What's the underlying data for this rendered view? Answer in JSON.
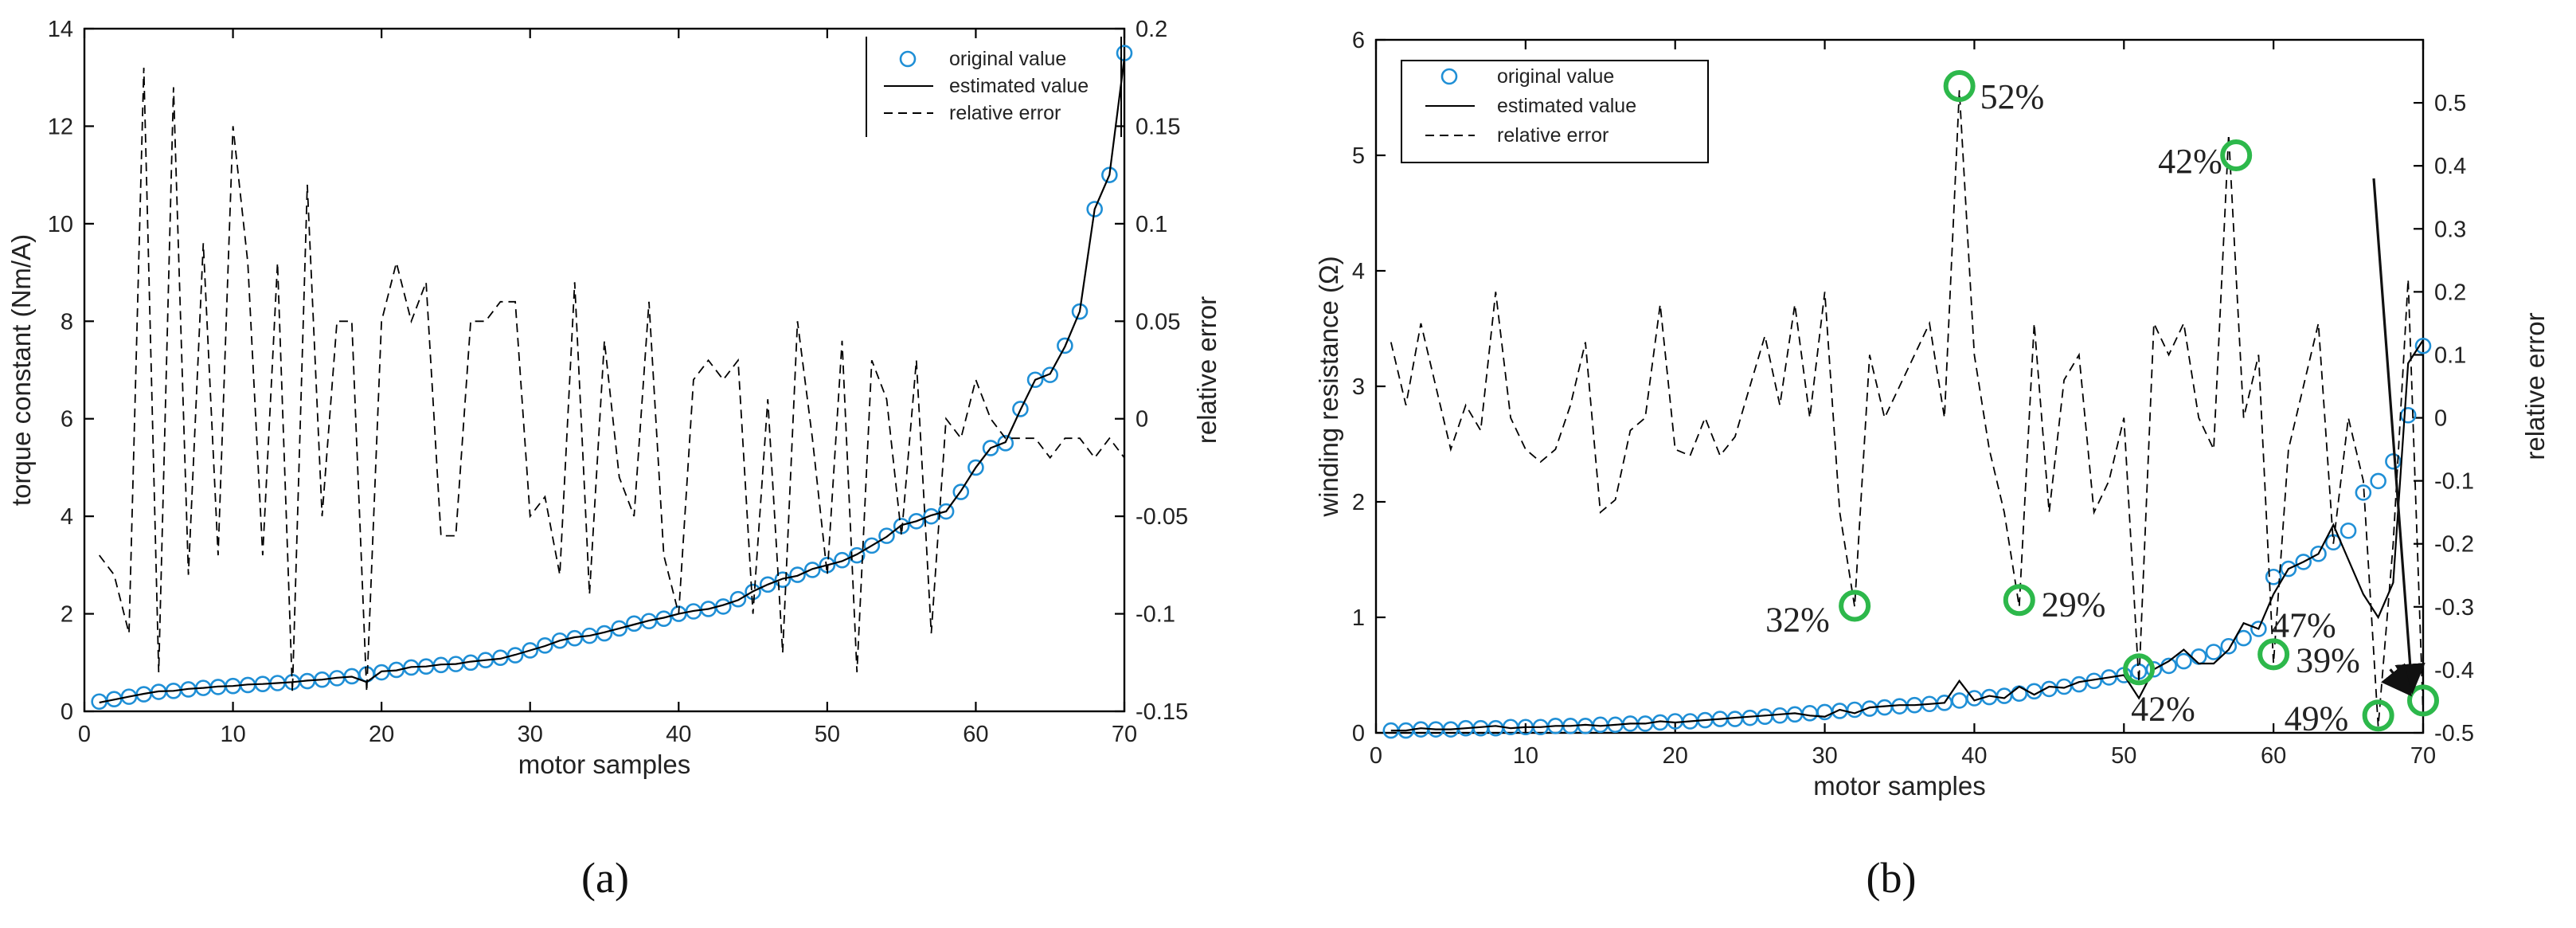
{
  "chart_data": [
    {
      "type": "line",
      "caption": "(a)",
      "xlabel": "motor samples",
      "ylabel": "torque constant (Nm/A)",
      "y2label": "relative error",
      "xlim": [
        0,
        70
      ],
      "ylim": [
        0,
        14
      ],
      "y2lim": [
        -0.15,
        0.2
      ],
      "xticks": [
        "0",
        "10",
        "20",
        "30",
        "40",
        "50",
        "60",
        "70"
      ],
      "yticks": [
        "0",
        "2",
        "4",
        "6",
        "8",
        "10",
        "12",
        "14"
      ],
      "y2ticks": [
        "-0.15",
        "-0.1",
        "-0.05",
        "0",
        "0.05",
        "0.1",
        "0.15",
        "0.2"
      ],
      "legend": {
        "position": "top-right",
        "entries": [
          "original value",
          "estimated value",
          "relative error"
        ]
      },
      "x": [
        1,
        2,
        3,
        4,
        5,
        6,
        7,
        8,
        9,
        10,
        11,
        12,
        13,
        14,
        15,
        16,
        17,
        18,
        19,
        20,
        21,
        22,
        23,
        24,
        25,
        26,
        27,
        28,
        29,
        30,
        31,
        32,
        33,
        34,
        35,
        36,
        37,
        38,
        39,
        40,
        41,
        42,
        43,
        44,
        45,
        46,
        47,
        48,
        49,
        50,
        51,
        52,
        53,
        54,
        55,
        56,
        57,
        58,
        59,
        60,
        61,
        62,
        63,
        64,
        65,
        66,
        67,
        68,
        69,
        70
      ],
      "series": [
        {
          "name": "original value",
          "style": "circles",
          "axis": "left",
          "values": [
            0.2,
            0.25,
            0.3,
            0.35,
            0.4,
            0.42,
            0.45,
            0.48,
            0.5,
            0.52,
            0.54,
            0.56,
            0.58,
            0.6,
            0.62,
            0.65,
            0.68,
            0.72,
            0.76,
            0.8,
            0.85,
            0.9,
            0.92,
            0.95,
            0.97,
            1.0,
            1.05,
            1.1,
            1.15,
            1.25,
            1.35,
            1.45,
            1.5,
            1.55,
            1.6,
            1.7,
            1.8,
            1.85,
            1.9,
            2.0,
            2.05,
            2.1,
            2.15,
            2.3,
            2.45,
            2.6,
            2.7,
            2.8,
            2.9,
            3.0,
            3.1,
            3.2,
            3.4,
            3.6,
            3.8,
            3.9,
            4.0,
            4.1,
            4.5,
            5.0,
            5.4,
            5.5,
            6.2,
            6.8,
            6.9,
            7.5,
            8.2,
            10.3,
            11.0,
            13.5
          ]
        },
        {
          "name": "estimated value",
          "style": "solid",
          "axis": "left",
          "values": [
            0.18,
            0.24,
            0.3,
            0.36,
            0.41,
            0.42,
            0.46,
            0.48,
            0.51,
            0.52,
            0.55,
            0.56,
            0.58,
            0.6,
            0.63,
            0.65,
            0.69,
            0.71,
            0.6,
            0.82,
            0.84,
            0.91,
            0.92,
            0.96,
            0.97,
            1.02,
            1.05,
            1.08,
            1.16,
            1.25,
            1.34,
            1.45,
            1.52,
            1.55,
            1.62,
            1.7,
            1.78,
            1.86,
            1.92,
            2.0,
            2.06,
            2.1,
            2.18,
            2.28,
            2.46,
            2.6,
            2.72,
            2.78,
            2.92,
            3.0,
            3.08,
            3.22,
            3.4,
            3.58,
            3.82,
            3.9,
            4.02,
            4.1,
            4.52,
            5.0,
            5.4,
            5.52,
            6.18,
            6.8,
            6.92,
            7.48,
            8.2,
            10.3,
            11.0,
            13.4
          ]
        },
        {
          "name": "relative error",
          "style": "dashed",
          "axis": "right",
          "values": [
            -0.07,
            -0.08,
            -0.11,
            0.18,
            -0.13,
            0.17,
            -0.08,
            0.09,
            -0.07,
            0.15,
            0.08,
            -0.07,
            0.08,
            -0.14,
            0.12,
            -0.05,
            0.05,
            0.05,
            -0.14,
            0.05,
            0.08,
            0.05,
            0.07,
            -0.06,
            -0.06,
            0.05,
            0.05,
            0.06,
            0.06,
            -0.05,
            -0.04,
            -0.08,
            0.07,
            -0.09,
            0.04,
            -0.03,
            -0.05,
            0.06,
            -0.07,
            -0.1,
            0.02,
            0.03,
            0.02,
            0.03,
            -0.1,
            0.01,
            -0.12,
            0.05,
            -0.01,
            -0.08,
            0.04,
            -0.13,
            0.03,
            0.01,
            -0.06,
            0.03,
            -0.11,
            0.0,
            -0.01,
            0.02,
            0.0,
            -0.01,
            -0.01,
            -0.01,
            -0.02,
            -0.01,
            -0.01,
            -0.02,
            -0.01,
            -0.02
          ]
        }
      ]
    },
    {
      "type": "line",
      "caption": "(b)",
      "xlabel": "motor samples",
      "ylabel": "winding resistance (Ω)",
      "y2label": "relative error",
      "xlim": [
        0,
        70
      ],
      "ylim": [
        0,
        6
      ],
      "y2lim": [
        -0.5,
        0.6
      ],
      "xticks": [
        "0",
        "10",
        "20",
        "30",
        "40",
        "50",
        "60",
        "70"
      ],
      "yticks": [
        "0",
        "1",
        "2",
        "3",
        "4",
        "5",
        "6"
      ],
      "y2ticks": [
        "-0.5",
        "-0.4",
        "-0.3",
        "-0.2",
        "-0.1",
        "0",
        "0.1",
        "0.2",
        "0.3",
        "0.4",
        "0.5"
      ],
      "legend": {
        "position": "top-left",
        "entries": [
          "original value",
          "estimated value",
          "relative error"
        ]
      },
      "x": [
        1,
        2,
        3,
        4,
        5,
        6,
        7,
        8,
        9,
        10,
        11,
        12,
        13,
        14,
        15,
        16,
        17,
        18,
        19,
        20,
        21,
        22,
        23,
        24,
        25,
        26,
        27,
        28,
        29,
        30,
        31,
        32,
        33,
        34,
        35,
        36,
        37,
        38,
        39,
        40,
        41,
        42,
        43,
        44,
        45,
        46,
        47,
        48,
        49,
        50,
        51,
        52,
        53,
        54,
        55,
        56,
        57,
        58,
        59,
        60,
        61,
        62,
        63,
        64,
        65,
        66,
        67,
        68,
        69,
        70
      ],
      "series": [
        {
          "name": "original value",
          "style": "circles",
          "axis": "left",
          "values": [
            0.02,
            0.02,
            0.03,
            0.03,
            0.03,
            0.04,
            0.04,
            0.04,
            0.05,
            0.05,
            0.05,
            0.06,
            0.06,
            0.06,
            0.07,
            0.07,
            0.08,
            0.08,
            0.09,
            0.1,
            0.1,
            0.11,
            0.12,
            0.12,
            0.13,
            0.14,
            0.15,
            0.16,
            0.17,
            0.18,
            0.19,
            0.2,
            0.21,
            0.22,
            0.23,
            0.24,
            0.25,
            0.26,
            0.28,
            0.3,
            0.31,
            0.32,
            0.34,
            0.36,
            0.38,
            0.4,
            0.42,
            0.45,
            0.48,
            0.5,
            0.53,
            0.55,
            0.58,
            0.62,
            0.66,
            0.7,
            0.75,
            0.82,
            0.9,
            1.35,
            1.42,
            1.48,
            1.55,
            1.65,
            1.75,
            2.08,
            2.18,
            2.35,
            2.75,
            3.35
          ]
        },
        {
          "name": "estimated value",
          "style": "solid",
          "axis": "left",
          "values": [
            0.02,
            0.02,
            0.04,
            0.03,
            0.03,
            0.04,
            0.05,
            0.06,
            0.04,
            0.05,
            0.05,
            0.06,
            0.06,
            0.07,
            0.06,
            0.07,
            0.08,
            0.08,
            0.1,
            0.09,
            0.1,
            0.11,
            0.12,
            0.13,
            0.14,
            0.15,
            0.16,
            0.17,
            0.15,
            0.14,
            0.2,
            0.17,
            0.22,
            0.23,
            0.24,
            0.24,
            0.25,
            0.26,
            0.45,
            0.28,
            0.32,
            0.3,
            0.4,
            0.33,
            0.4,
            0.39,
            0.44,
            0.46,
            0.48,
            0.5,
            0.3,
            0.55,
            0.62,
            0.72,
            0.6,
            0.6,
            0.72,
            0.95,
            0.9,
            1.2,
            1.42,
            1.48,
            1.55,
            1.8,
            1.5,
            1.2,
            1.0,
            1.3,
            3.2,
            3.4
          ]
        },
        {
          "name": "relative error",
          "style": "dashed",
          "axis": "right",
          "values": [
            0.12,
            0.02,
            0.15,
            0.05,
            -0.05,
            0.02,
            -0.02,
            0.2,
            0.0,
            -0.05,
            -0.07,
            -0.05,
            0.02,
            0.12,
            -0.15,
            -0.13,
            -0.02,
            0.0,
            0.18,
            -0.05,
            -0.06,
            0.0,
            -0.06,
            -0.03,
            0.05,
            0.13,
            0.02,
            0.18,
            0.0,
            0.2,
            -0.15,
            -0.3,
            0.1,
            0.0,
            0.05,
            0.1,
            0.15,
            0.0,
            0.52,
            0.1,
            -0.05,
            -0.15,
            -0.3,
            0.15,
            -0.15,
            0.06,
            0.1,
            -0.15,
            -0.1,
            0.0,
            -0.42,
            0.15,
            0.1,
            0.15,
            0.0,
            -0.05,
            0.45,
            0.0,
            0.1,
            -0.39,
            -0.05,
            0.05,
            0.15,
            -0.2,
            0.0,
            -0.1,
            -0.49,
            -0.2,
            0.22,
            -0.47
          ]
        }
      ],
      "annotations": [
        "52%",
        "42%",
        "47%",
        "32%",
        "29%",
        "39%",
        "42%",
        "49%"
      ],
      "highlighted_points": [
        {
          "label": "52%",
          "x": 39,
          "y": 5.6
        },
        {
          "label": "42%",
          "x": 57.5,
          "y": 5.0
        },
        {
          "label": "32%",
          "x": 32,
          "y": 1.1
        },
        {
          "label": "29%",
          "x": 43,
          "y": 1.15
        },
        {
          "label": "42%",
          "x": 51,
          "y": 0.55
        },
        {
          "label": "39%",
          "x": 60,
          "y": 0.68
        },
        {
          "label": "49%",
          "x": 67,
          "y": 0.15
        },
        {
          "label": "47%",
          "x": 70,
          "y": 0.28
        }
      ],
      "arrows": [
        {
          "from_label": "47%",
          "to_x": 69.5,
          "to_y": 0.35
        },
        {
          "from_label": "49%",
          "to_x": 69.5,
          "to_y": 0.3
        }
      ]
    }
  ],
  "colors": {
    "marker": "#1f8fd6",
    "estimated": "#000000",
    "relative_error": "#000000",
    "highlight": "#2db84b"
  }
}
